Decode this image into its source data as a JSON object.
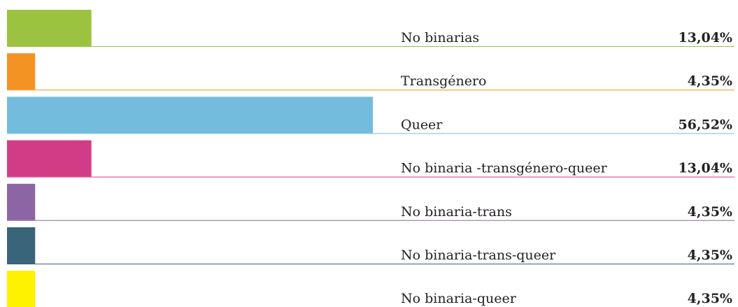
{
  "chart_data": {
    "type": "bar",
    "categories": [
      "No binarias",
      "Transgénero",
      "Queer",
      "No binaria -transgénero-queer",
      "No binaria-trans",
      "No binaria-trans-queer",
      "No binaria-queer"
    ],
    "values": [
      13.04,
      4.35,
      56.52,
      13.04,
      4.35,
      4.35,
      4.35
    ],
    "value_labels": [
      "13,04%",
      "4,35%",
      "56,52%",
      "13,04%",
      "4,35%",
      "4,35%",
      "4,35%"
    ],
    "colors": [
      "#9bc33f",
      "#f39323",
      "#74bcdd",
      "#d23c87",
      "#8c65a4",
      "#3a6479",
      "#fff200"
    ]
  }
}
